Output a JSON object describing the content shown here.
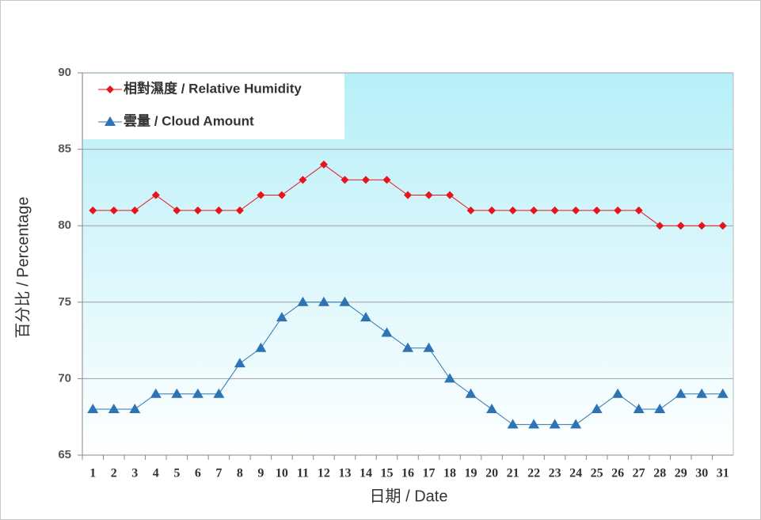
{
  "chart_data": {
    "type": "line",
    "x_label": "日期 / Date",
    "y_label": "百分比 / Percentage",
    "categories": [
      "1",
      "2",
      "3",
      "4",
      "5",
      "6",
      "7",
      "8",
      "9",
      "10",
      "11",
      "12",
      "13",
      "14",
      "15",
      "16",
      "17",
      "18",
      "19",
      "20",
      "21",
      "22",
      "23",
      "24",
      "25",
      "26",
      "27",
      "28",
      "29",
      "30",
      "31"
    ],
    "series": [
      {
        "name": "相對濕度 / Relative Humidity",
        "color": "#e8141b",
        "marker": "diamond",
        "values": [
          81,
          81,
          81,
          82,
          81,
          81,
          81,
          81,
          82,
          82,
          83,
          84,
          83,
          83,
          83,
          82,
          82,
          82,
          81,
          81,
          81,
          81,
          81,
          81,
          81,
          81,
          81,
          80,
          80,
          80,
          80
        ]
      },
      {
        "name": "雲量 / Cloud Amount",
        "color": "#2e74b5",
        "marker": "triangle",
        "values": [
          68,
          68,
          68,
          69,
          69,
          69,
          69,
          71,
          72,
          74,
          75,
          75,
          75,
          74,
          73,
          72,
          72,
          70,
          69,
          68,
          67,
          67,
          67,
          67,
          68,
          69,
          68,
          68,
          69,
          69,
          69
        ]
      }
    ],
    "ylim": [
      65,
      90
    ],
    "yticks": [
      65,
      70,
      75,
      80,
      85,
      90
    ],
    "grid": true,
    "legend": "upper left"
  }
}
